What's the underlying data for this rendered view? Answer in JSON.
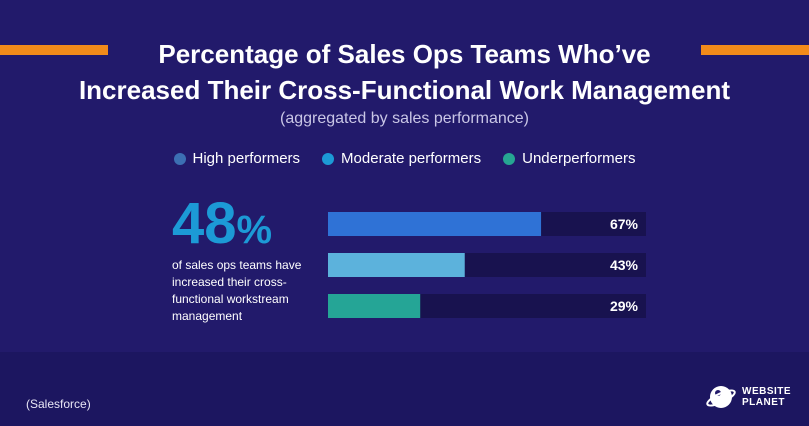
{
  "title_line1": "Percentage of Sales Ops Teams Who’ve",
  "title_line2": "Increased Their Cross-Functional Work Management",
  "subtitle": "(aggregated by sales performance)",
  "highlight": {
    "number": "48",
    "unit": "%",
    "description": "of sales ops teams have increased their cross-functional workstream management"
  },
  "source": "(Salesforce)",
  "logo": {
    "line1": "WEBSITE",
    "line2": "PLANET",
    "icon": "planet-icon"
  },
  "colors": {
    "background": "#221a6b",
    "accent_orange": "#f28b1a",
    "track": "#18124f"
  },
  "chart_data": {
    "type": "bar",
    "orientation": "horizontal",
    "xlim": [
      0,
      100
    ],
    "legend_position": "top",
    "series": [
      {
        "name": "High performers",
        "value": 67,
        "label": "67%",
        "color": "#2f72d6",
        "legend_color": "#3c6fb3"
      },
      {
        "name": "Moderate performers",
        "value": 43,
        "label": "43%",
        "color": "#5cb2dc",
        "legend_color": "#1c9ad6"
      },
      {
        "name": "Underperformers",
        "value": 29,
        "label": "29%",
        "color": "#25a596",
        "legend_color": "#26a692"
      }
    ]
  }
}
